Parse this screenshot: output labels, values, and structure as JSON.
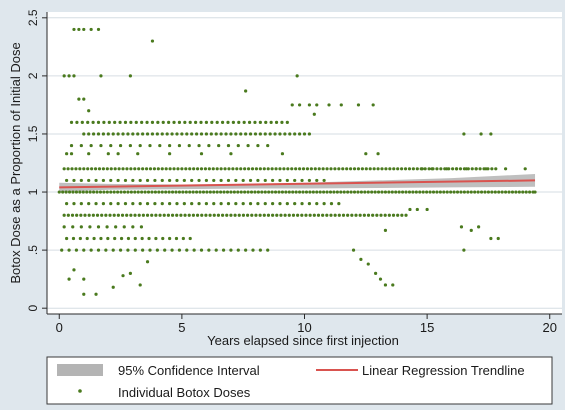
{
  "chart_data": {
    "type": "scatter",
    "xlabel": "Years elapsed since first injection",
    "ylabel": "Botox Dose as a Proportion of Initial Dose",
    "xlim": [
      -0.5,
      20.5
    ],
    "ylim": [
      -0.05,
      2.55
    ],
    "x_ticks": [
      0,
      5,
      10,
      15,
      20
    ],
    "y_ticks": [
      0,
      0.5,
      1,
      1.5,
      2,
      2.5
    ],
    "x_tick_labels": [
      "0",
      "5",
      "10",
      "15",
      "20"
    ],
    "y_tick_labels": [
      "0",
      ".5",
      "1",
      "1.5",
      "2",
      "2.5"
    ],
    "grid": "horizontal",
    "legend_position": "bottom",
    "legend": {
      "ci_label": "95% Confidence Interval",
      "trend_label": "Linear Regression Trendline",
      "points_label": "Individual Botox Doses"
    },
    "colors": {
      "points": "#4a7a1e",
      "trendline": "#d9534f",
      "confidence_band": "#b4b4b4",
      "plot_background": "#ffffff",
      "figure_background": "#dfe7ed",
      "grid": "#d6dde3"
    },
    "trendline": {
      "x": [
        0,
        19.4
      ],
      "y": [
        1.04,
        1.1
      ]
    },
    "confidence_band": {
      "x": [
        0,
        2,
        5,
        8,
        10,
        13,
        16,
        19.4
      ],
      "lower": [
        1.0,
        1.02,
        1.025,
        1.03,
        1.03,
        1.035,
        1.04,
        1.045
      ],
      "upper": [
        1.08,
        1.07,
        1.065,
        1.07,
        1.08,
        1.1,
        1.12,
        1.155
      ]
    },
    "series": [
      {
        "name": "Individual Botox Doses",
        "rows": [
          {
            "y": 1.0,
            "from": 0.0,
            "to": 19.4,
            "step": 0.14
          },
          {
            "y": 1.2,
            "from": 0.2,
            "to": 17.8,
            "step": 0.16
          },
          {
            "y": 0.8,
            "from": 0.2,
            "to": 14.2,
            "step": 0.17
          },
          {
            "y": 1.5,
            "from": 1.0,
            "to": 10.2,
            "step": 0.2
          },
          {
            "y": 1.6,
            "from": 0.5,
            "to": 9.4,
            "step": 0.22
          },
          {
            "y": 1.1,
            "from": 0.3,
            "to": 11.0,
            "step": 0.3
          },
          {
            "y": 0.9,
            "from": 0.3,
            "to": 11.5,
            "step": 0.3
          },
          {
            "y": 1.4,
            "from": 0.5,
            "to": 8.5,
            "step": 0.4
          },
          {
            "y": 0.6,
            "from": 0.3,
            "to": 5.4,
            "step": 0.28
          },
          {
            "y": 0.5,
            "from": 0.1,
            "to": 8.5,
            "step": 0.3
          },
          {
            "y": 0.7,
            "from": 0.2,
            "to": 3.6,
            "step": 0.35
          }
        ],
        "points": [
          [
            0.6,
            2.4
          ],
          [
            0.8,
            2.4
          ],
          [
            1.0,
            2.4
          ],
          [
            1.3,
            2.4
          ],
          [
            1.6,
            2.4
          ],
          [
            3.8,
            2.3
          ],
          [
            0.2,
            2.0
          ],
          [
            0.4,
            2.0
          ],
          [
            0.6,
            2.0
          ],
          [
            1.7,
            2.0
          ],
          [
            2.9,
            2.0
          ],
          [
            9.7,
            2.0
          ],
          [
            7.6,
            1.87
          ],
          [
            0.8,
            1.8
          ],
          [
            1.0,
            1.8
          ],
          [
            1.2,
            1.7
          ],
          [
            9.5,
            1.75
          ],
          [
            9.8,
            1.75
          ],
          [
            10.2,
            1.75
          ],
          [
            10.5,
            1.75
          ],
          [
            11.0,
            1.75
          ],
          [
            11.5,
            1.75
          ],
          [
            12.2,
            1.75
          ],
          [
            12.8,
            1.75
          ],
          [
            10.4,
            1.67
          ],
          [
            0.3,
            1.33
          ],
          [
            0.5,
            1.33
          ],
          [
            1.2,
            1.33
          ],
          [
            2.0,
            1.33
          ],
          [
            2.4,
            1.33
          ],
          [
            3.2,
            1.33
          ],
          [
            4.5,
            1.33
          ],
          [
            5.8,
            1.33
          ],
          [
            7.0,
            1.33
          ],
          [
            9.1,
            1.33
          ],
          [
            12.5,
            1.33
          ],
          [
            13.0,
            1.33
          ],
          [
            16.5,
            1.5
          ],
          [
            17.2,
            1.5
          ],
          [
            17.6,
            1.5
          ],
          [
            0.6,
            0.33
          ],
          [
            1.0,
            0.25
          ],
          [
            1.5,
            0.12
          ],
          [
            2.2,
            0.18
          ],
          [
            2.6,
            0.28
          ],
          [
            3.3,
            0.2
          ],
          [
            3.6,
            0.4
          ],
          [
            2.9,
            0.3
          ],
          [
            0.4,
            0.25
          ],
          [
            1.0,
            0.12
          ],
          [
            12.0,
            0.5
          ],
          [
            12.3,
            0.42
          ],
          [
            12.6,
            0.38
          ],
          [
            12.9,
            0.3
          ],
          [
            13.1,
            0.25
          ],
          [
            13.3,
            0.2
          ],
          [
            13.6,
            0.2
          ],
          [
            13.3,
            0.67
          ],
          [
            14.3,
            0.85
          ],
          [
            14.6,
            0.85
          ],
          [
            15.0,
            0.85
          ],
          [
            16.4,
            0.7
          ],
          [
            16.8,
            0.67
          ],
          [
            17.1,
            0.7
          ],
          [
            17.6,
            0.6
          ],
          [
            17.9,
            0.6
          ],
          [
            16.5,
            0.5
          ],
          [
            14.8,
            1.2
          ],
          [
            15.2,
            1.2
          ],
          [
            15.8,
            1.2
          ],
          [
            16.2,
            1.2
          ],
          [
            16.6,
            1.2
          ],
          [
            17.0,
            1.2
          ],
          [
            17.4,
            1.2
          ],
          [
            18.2,
            1.2
          ],
          [
            19.0,
            1.2
          ],
          [
            19.4,
            1.0
          ]
        ]
      }
    ]
  }
}
